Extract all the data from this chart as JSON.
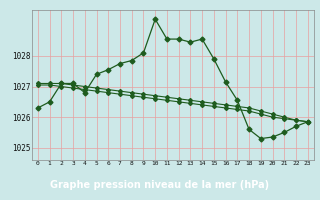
{
  "title": "Graphe pression niveau de la mer (hPa)",
  "background_color": "#cce8e8",
  "plot_bg_color": "#cce8e8",
  "footer_bg_color": "#2d6e2d",
  "footer_text_color": "#ffffff",
  "grid_color_v": "#e8a0a0",
  "grid_color_h": "#e8a0a0",
  "line_color": "#1e5c1e",
  "xlim": [
    -0.5,
    23.5
  ],
  "ylim": [
    1024.6,
    1029.5
  ],
  "yticks": [
    1025,
    1026,
    1027,
    1028
  ],
  "ytick_labels": [
    "1025",
    "1026",
    "1027",
    "1028"
  ],
  "xticks": [
    0,
    1,
    2,
    3,
    4,
    5,
    6,
    7,
    8,
    9,
    10,
    11,
    12,
    13,
    14,
    15,
    16,
    17,
    18,
    19,
    20,
    21,
    22,
    23
  ],
  "series1": [
    1026.3,
    1026.5,
    1027.1,
    1027.1,
    1026.8,
    1027.4,
    1027.55,
    1027.75,
    1027.85,
    1028.1,
    1029.2,
    1028.55,
    1028.55,
    1028.45,
    1028.55,
    1027.9,
    1027.15,
    1026.55,
    1025.6,
    1025.3,
    1025.35,
    1025.5,
    1025.7,
    1025.85
  ],
  "series2": [
    1027.1,
    1027.1,
    1027.1,
    1027.05,
    1027.0,
    1026.95,
    1026.9,
    1026.85,
    1026.8,
    1026.75,
    1026.7,
    1026.65,
    1026.6,
    1026.55,
    1026.5,
    1026.45,
    1026.4,
    1026.35,
    1026.3,
    1026.2,
    1026.1,
    1026.0,
    1025.9,
    1025.85
  ],
  "series3": [
    1027.05,
    1027.05,
    1027.0,
    1026.95,
    1026.9,
    1026.85,
    1026.8,
    1026.75,
    1026.7,
    1026.65,
    1026.6,
    1026.55,
    1026.5,
    1026.45,
    1026.4,
    1026.35,
    1026.3,
    1026.25,
    1026.2,
    1026.1,
    1026.0,
    1025.95,
    1025.9,
    1025.85
  ]
}
